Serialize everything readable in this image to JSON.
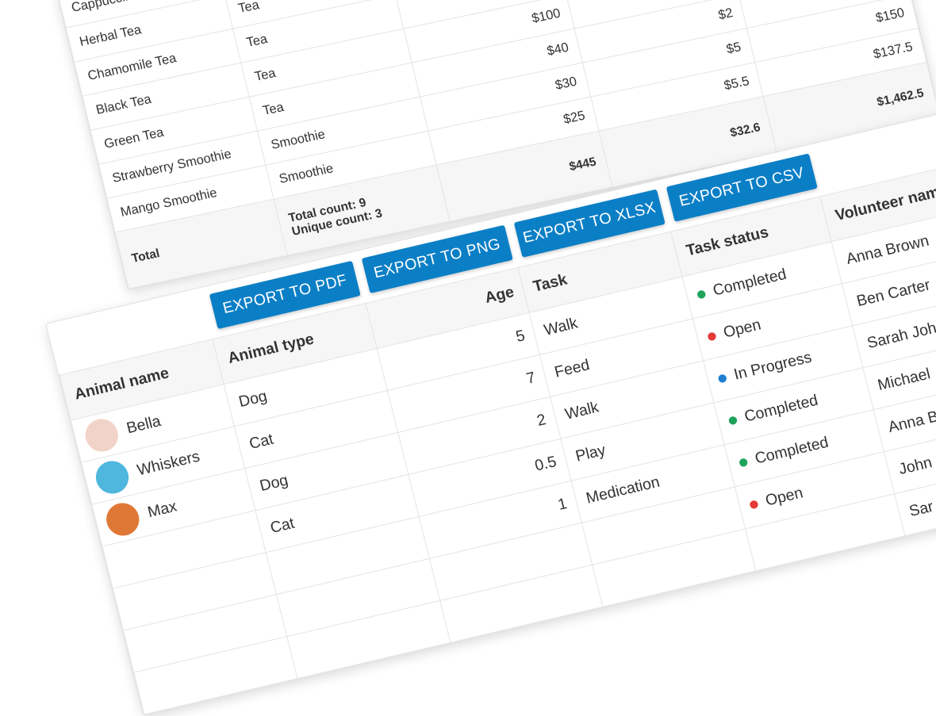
{
  "back_table": {
    "rows": [
      [
        "Cappuccino",
        null,
        null,
        null,
        null
      ],
      [
        "Herbal Tea",
        "Tea",
        null,
        null,
        null
      ],
      [
        "Chamomile Tea",
        "Tea",
        null,
        null,
        null
      ],
      [
        "Black Tea",
        "Tea",
        "$100",
        null,
        null
      ],
      [
        "Green Tea",
        "Tea",
        "$40",
        "$2",
        null
      ],
      [
        "Strawberry Smoothie",
        "Smoothie",
        "$30",
        "$5",
        "$150"
      ],
      [
        "Mango Smoothie",
        "Smoothie",
        "$25",
        "$5.5",
        "$137.5"
      ]
    ],
    "footer": {
      "label": "Total",
      "count": "Total count: 9",
      "unique": "Unique count: 3",
      "cells": [
        "$445",
        "$32.6",
        "$1,462.5"
      ]
    }
  },
  "buttons": [
    "EXPORT TO PDF",
    "EXPORT TO PNG",
    "EXPORT TO XLSX",
    "EXPORT TO CSV"
  ],
  "front_table": {
    "columns": [
      "Animal name",
      "Animal type",
      "Age",
      "Task",
      "Task status",
      "Volunteer name"
    ],
    "rows": [
      [
        "Bella",
        "Dog",
        5,
        "Walk",
        {
          "text": "Completed",
          "color": "#1ea35a"
        },
        "Anna Brown"
      ],
      [
        "Whiskers",
        "Cat",
        7,
        "Feed",
        {
          "text": "Open",
          "color": "#e53935"
        },
        "Ben Carter"
      ],
      [
        "Max",
        "Dog",
        2,
        "Walk",
        {
          "text": "In Progress",
          "color": "#1e7fd0"
        },
        "Sarah Joh"
      ],
      [
        null,
        "Cat",
        0.5,
        "Play",
        {
          "text": "Completed",
          "color": "#1ea35a"
        },
        "Michael"
      ],
      [
        null,
        null,
        1,
        "Medication",
        {
          "text": "Completed",
          "color": "#1ea35a"
        },
        "Anna B"
      ],
      [
        null,
        null,
        null,
        null,
        {
          "text": "Open",
          "color": "#e53935"
        },
        "John"
      ],
      [
        null,
        null,
        null,
        null,
        null,
        "Sar"
      ]
    ]
  }
}
